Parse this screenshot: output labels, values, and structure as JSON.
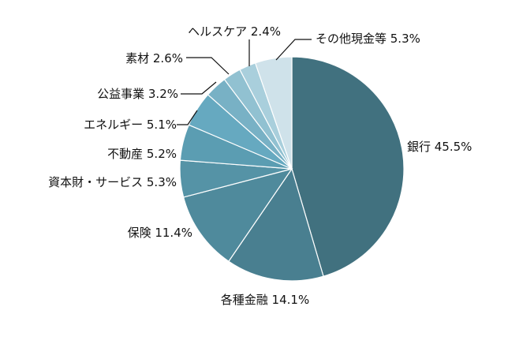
{
  "chart_data": {
    "type": "pie",
    "start": "12 o'clock",
    "direction": "clockwise",
    "legend": "none",
    "slices": [
      {
        "label": "銀行",
        "value": 45.5,
        "display": "銀行 45.5%",
        "color": "#41717f"
      },
      {
        "label": "各種金融",
        "value": 14.1,
        "display": "各種金融 14.1%",
        "color": "#497f90"
      },
      {
        "label": "保険",
        "value": 11.4,
        "display": "保険 11.4%",
        "color": "#4f8a9c"
      },
      {
        "label": "資本財・サービス",
        "value": 5.3,
        "display": "資本財・サービス 5.3%",
        "color": "#5593a6"
      },
      {
        "label": "不動産",
        "value": 5.2,
        "display": "不動産 5.2%",
        "color": "#5b9db2"
      },
      {
        "label": "エネルギー",
        "value": 5.1,
        "display": "エネルギー 5.1%",
        "color": "#66a9c0"
      },
      {
        "label": "公益事業",
        "value": 3.2,
        "display": "公益事業 3.2%",
        "color": "#78b1c5"
      },
      {
        "label": "素材",
        "value": 2.6,
        "display": "素材 2.6%",
        "color": "#91c1d1"
      },
      {
        "label": "ヘルスケア",
        "value": 2.4,
        "display": "ヘルスケア 2.4%",
        "color": "#a9cfdc"
      },
      {
        "label": "その他現金等",
        "value": 5.3,
        "display": "その他現金等 5.3%",
        "color": "#cfe2ea"
      }
    ]
  }
}
